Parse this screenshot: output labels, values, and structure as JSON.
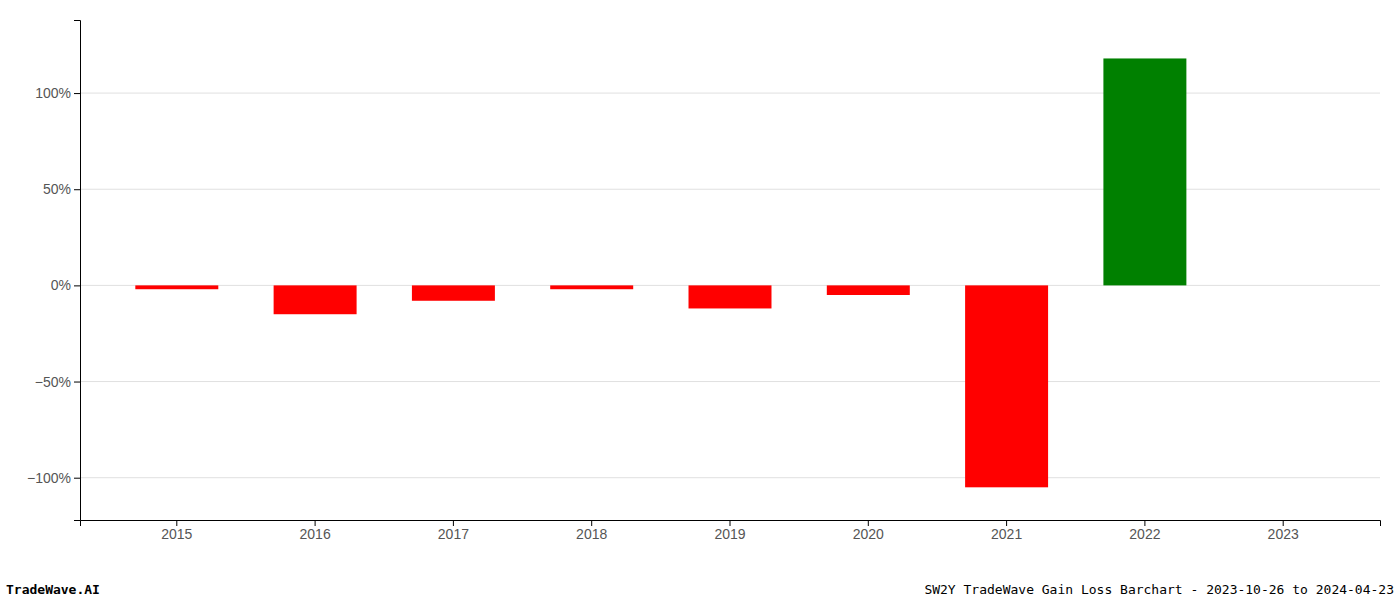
{
  "chart_data": {
    "type": "bar",
    "categories": [
      "2015",
      "2016",
      "2017",
      "2018",
      "2019",
      "2020",
      "2021",
      "2022",
      "2023"
    ],
    "values": [
      -0.02,
      -0.15,
      -0.08,
      -0.02,
      -0.12,
      -0.05,
      -1.05,
      1.18,
      0.0
    ],
    "colors": [
      "#ff0000",
      "#ff0000",
      "#ff0000",
      "#ff0000",
      "#ff0000",
      "#ff0000",
      "#ff0000",
      "#008000",
      "#ffffff"
    ],
    "ylim": [
      -1.22,
      1.38
    ],
    "yticks": [
      {
        "value": -1.0,
        "label": "−100%"
      },
      {
        "value": -0.5,
        "label": "−50%"
      },
      {
        "value": 0.0,
        "label": "0%"
      },
      {
        "value": 0.5,
        "label": "50%"
      },
      {
        "value": 1.0,
        "label": "100%"
      }
    ],
    "grid": true,
    "annotations": [
      "TradeWave.AI",
      "SW2Y TradeWave Gain Loss Barchart - 2023-10-26 to 2024-04-23"
    ]
  }
}
